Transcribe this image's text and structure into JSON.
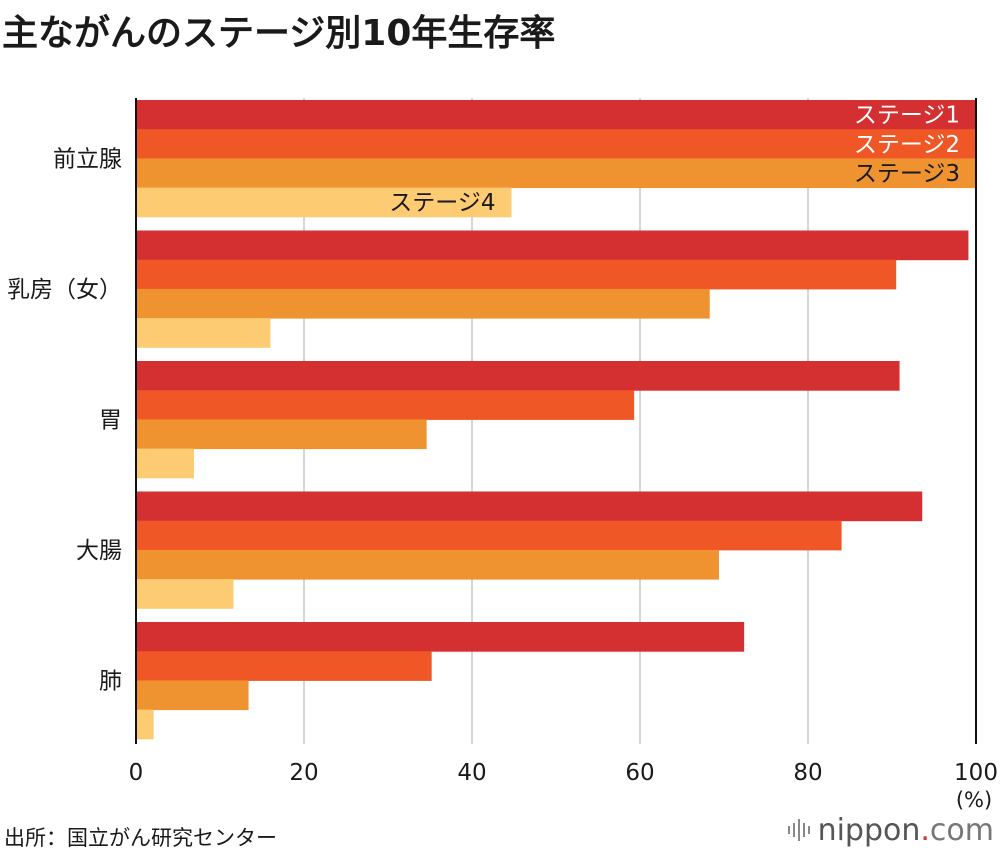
{
  "title": "主ながんのステージ別10年生存率",
  "source": "出所：国立がん研究センター",
  "logo": {
    "name": "nippon",
    "dot": ".",
    "suffix": "com"
  },
  "colors": {
    "stage1": "#d42f31",
    "stage2": "#ef5726",
    "stage3": "#ef9330",
    "stage4": "#fccb72",
    "grid": "#c8c8c8",
    "axis": "#111111"
  },
  "chart_data": {
    "type": "bar",
    "orientation": "horizontal",
    "categories": [
      "前立腺",
      "乳房（女）",
      "胃",
      "大腸",
      "肺"
    ],
    "series": [
      {
        "name": "ステージ1",
        "values": [
          100,
          99.1,
          90.9,
          93.6,
          72.4
        ]
      },
      {
        "name": "ステージ2",
        "values": [
          100,
          90.5,
          59.3,
          84.0,
          35.2
        ]
      },
      {
        "name": "ステージ3",
        "values": [
          100,
          68.3,
          34.6,
          69.4,
          13.4
        ]
      },
      {
        "name": "ステージ4",
        "values": [
          44.7,
          16.0,
          6.9,
          11.6,
          2.1
        ]
      }
    ],
    "xlim": [
      0,
      100
    ],
    "xticks": [
      "0",
      "20",
      "40",
      "60",
      "80",
      "100"
    ],
    "xunit": "(%)",
    "grid": true,
    "legend": "inline labels on first category bars"
  }
}
